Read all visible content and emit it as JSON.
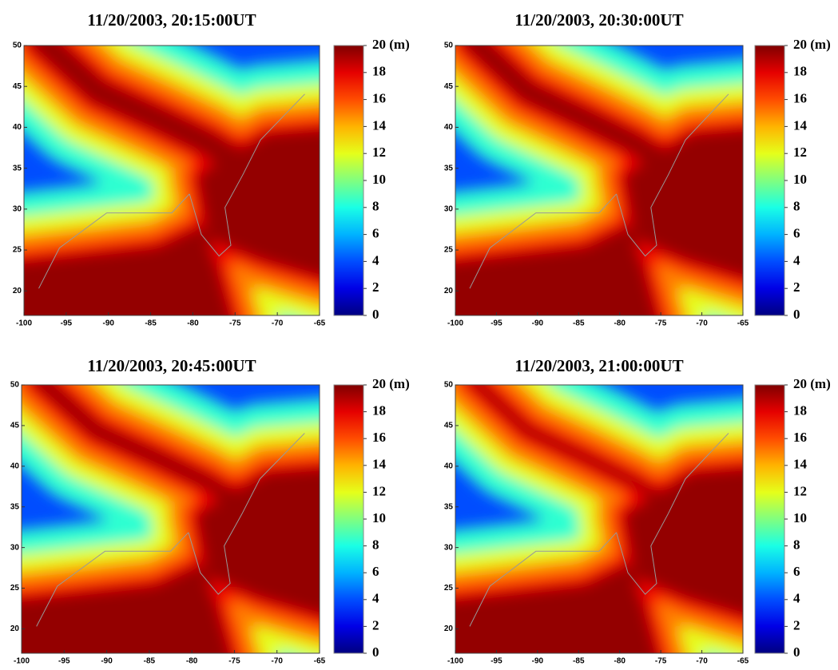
{
  "chart_data": [
    {
      "type": "heatmap",
      "title": "11/20/2003, 20:15:00UT",
      "xlim": [
        -100,
        -65
      ],
      "xticks": [
        -100,
        -95,
        -90,
        -85,
        -80,
        -75,
        -70,
        -65
      ],
      "ylim": [
        17,
        50
      ],
      "yticks": [
        20,
        25,
        30,
        35,
        40,
        45,
        50
      ],
      "colormap": "jet",
      "clim": [
        0,
        20
      ],
      "cticks": [
        0,
        2,
        4,
        6,
        8,
        10,
        12,
        14,
        16,
        18,
        {
          "value": 20,
          "label": "20 (m)"
        }
      ]
    },
    {
      "type": "heatmap",
      "title": "11/20/2003, 20:30:00UT",
      "xlim": [
        -100,
        -65
      ],
      "xticks": [
        -100,
        -95,
        -90,
        -85,
        -80,
        -75,
        -70,
        -65
      ],
      "ylim": [
        17,
        50
      ],
      "yticks": [
        20,
        25,
        30,
        35,
        40,
        45,
        50
      ],
      "colormap": "jet",
      "clim": [
        0,
        20
      ],
      "cticks": [
        0,
        2,
        4,
        6,
        8,
        10,
        12,
        14,
        16,
        18,
        {
          "value": 20,
          "label": "20 (m)"
        }
      ]
    },
    {
      "type": "heatmap",
      "title": "11/20/2003, 20:45:00UT",
      "xlim": [
        -100,
        -65
      ],
      "xticks": [
        -100,
        -95,
        -90,
        -85,
        -80,
        -75,
        -70,
        -65
      ],
      "ylim": [
        17,
        50
      ],
      "yticks": [
        20,
        25,
        30,
        35,
        40,
        45,
        50
      ],
      "colormap": "jet",
      "clim": [
        0,
        20
      ],
      "cticks": [
        0,
        2,
        4,
        6,
        8,
        10,
        12,
        14,
        16,
        18,
        {
          "value": 20,
          "label": "20 (m)"
        }
      ]
    },
    {
      "type": "heatmap",
      "title": "11/20/2003, 21:00:00UT",
      "xlim": [
        -100,
        -65
      ],
      "xticks": [
        -100,
        -95,
        -90,
        -85,
        -80,
        -75,
        -70,
        -65
      ],
      "ylim": [
        17,
        50
      ],
      "yticks": [
        20,
        25,
        30,
        35,
        40,
        45,
        50
      ],
      "colormap": "jet",
      "clim": [
        0,
        20
      ],
      "cticks": [
        0,
        2,
        4,
        6,
        8,
        10,
        12,
        14,
        16,
        18,
        {
          "value": 20,
          "label": "20 (m)"
        }
      ]
    }
  ]
}
